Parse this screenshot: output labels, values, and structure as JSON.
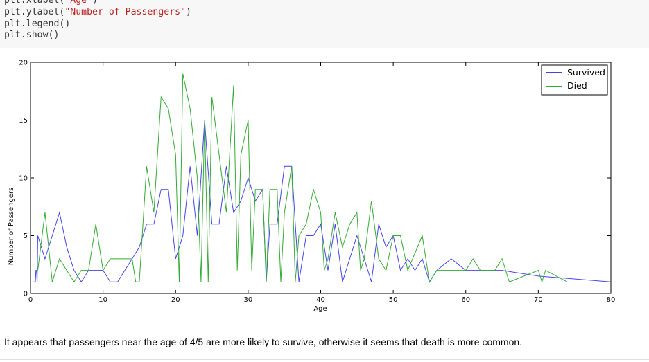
{
  "code_cell": {
    "lines": [
      [
        {
          "t": "plt.xlabel("
        },
        {
          "t": "\"Age\"",
          "s": true
        },
        {
          "t": ")"
        }
      ],
      [
        {
          "t": "plt.ylabel("
        },
        {
          "t": "\"Number of Passengers\"",
          "s": true
        },
        {
          "t": ")"
        }
      ],
      [
        {
          "t": "plt.legend()"
        }
      ],
      [
        {
          "t": "plt.show()"
        }
      ]
    ]
  },
  "chart_data": {
    "type": "line",
    "title": "",
    "xlabel": "Age",
    "ylabel": "Number of Passengers",
    "xlim": [
      0,
      80
    ],
    "ylim": [
      0,
      20
    ],
    "x_ticks": [
      0,
      10,
      20,
      30,
      40,
      50,
      60,
      70,
      80
    ],
    "y_ticks": [
      0,
      5,
      10,
      15,
      20
    ],
    "grid": false,
    "legend": "top-right",
    "series": [
      {
        "name": "Survived",
        "color": "#4444ee",
        "points": [
          [
            0.42,
            1
          ],
          [
            0.67,
            1
          ],
          [
            0.75,
            2
          ],
          [
            0.83,
            2
          ],
          [
            0.92,
            1
          ],
          [
            1,
            5
          ],
          [
            2,
            3
          ],
          [
            3,
            5
          ],
          [
            4,
            7
          ],
          [
            5,
            4
          ],
          [
            6,
            2
          ],
          [
            7,
            1
          ],
          [
            8,
            2
          ],
          [
            9,
            2
          ],
          [
            10,
            2
          ],
          [
            11,
            1
          ],
          [
            12,
            1
          ],
          [
            13,
            2
          ],
          [
            14,
            3
          ],
          [
            15,
            4
          ],
          [
            16,
            6
          ],
          [
            17,
            6
          ],
          [
            18,
            9
          ],
          [
            19,
            9
          ],
          [
            20,
            3
          ],
          [
            21,
            5
          ],
          [
            22,
            11
          ],
          [
            23,
            5
          ],
          [
            24,
            15
          ],
          [
            25,
            6
          ],
          [
            26,
            6
          ],
          [
            27,
            11
          ],
          [
            28,
            7
          ],
          [
            29,
            8
          ],
          [
            30,
            10
          ],
          [
            31,
            8
          ],
          [
            32,
            9
          ],
          [
            32.5,
            1
          ],
          [
            33,
            6
          ],
          [
            34,
            6
          ],
          [
            35,
            11
          ],
          [
            36,
            11
          ],
          [
            37,
            1
          ],
          [
            38,
            5
          ],
          [
            39,
            5
          ],
          [
            40,
            6
          ],
          [
            41,
            2
          ],
          [
            42,
            6
          ],
          [
            43,
            1
          ],
          [
            44,
            3
          ],
          [
            45,
            5
          ],
          [
            46,
            3
          ],
          [
            47,
            1
          ],
          [
            48,
            6
          ],
          [
            49,
            4
          ],
          [
            50,
            5
          ],
          [
            51,
            2
          ],
          [
            52,
            3
          ],
          [
            53,
            2
          ],
          [
            54,
            3
          ],
          [
            55,
            1
          ],
          [
            56,
            2
          ],
          [
            58,
            3
          ],
          [
            60,
            2
          ],
          [
            62,
            2
          ],
          [
            63,
            2
          ],
          [
            65,
            2
          ],
          [
            70,
            1.5
          ],
          [
            80,
            1
          ]
        ]
      },
      {
        "name": "Died",
        "color": "#33aa33",
        "points": [
          [
            1,
            2
          ],
          [
            2,
            7
          ],
          [
            3,
            1
          ],
          [
            4,
            3
          ],
          [
            5,
            2
          ],
          [
            6,
            1
          ],
          [
            7,
            2
          ],
          [
            8,
            2
          ],
          [
            9,
            6
          ],
          [
            10,
            2
          ],
          [
            11,
            3
          ],
          [
            14,
            3
          ],
          [
            14.5,
            1
          ],
          [
            15,
            1
          ],
          [
            16,
            11
          ],
          [
            17,
            7
          ],
          [
            18,
            17
          ],
          [
            19,
            16
          ],
          [
            20,
            12
          ],
          [
            20.5,
            1
          ],
          [
            21,
            19
          ],
          [
            22,
            16
          ],
          [
            23,
            10
          ],
          [
            23.5,
            1
          ],
          [
            24,
            15
          ],
          [
            24.5,
            1
          ],
          [
            25,
            17
          ],
          [
            26,
            12
          ],
          [
            27,
            7
          ],
          [
            28,
            18
          ],
          [
            28.5,
            2
          ],
          [
            29,
            12
          ],
          [
            30,
            15
          ],
          [
            30.5,
            2
          ],
          [
            31,
            9
          ],
          [
            32,
            9
          ],
          [
            32.5,
            1
          ],
          [
            33,
            9
          ],
          [
            34,
            9
          ],
          [
            34.5,
            1
          ],
          [
            35,
            7
          ],
          [
            36,
            11
          ],
          [
            36.5,
            1
          ],
          [
            37,
            5
          ],
          [
            38,
            6
          ],
          [
            39,
            9
          ],
          [
            40,
            7
          ],
          [
            40.5,
            2
          ],
          [
            41,
            3
          ],
          [
            42,
            7
          ],
          [
            43,
            4
          ],
          [
            44,
            6
          ],
          [
            45,
            7
          ],
          [
            45.5,
            2
          ],
          [
            46,
            3
          ],
          [
            47,
            8
          ],
          [
            48,
            3
          ],
          [
            49,
            2
          ],
          [
            50,
            5
          ],
          [
            51,
            5
          ],
          [
            52,
            2
          ],
          [
            54,
            5
          ],
          [
            55,
            1
          ],
          [
            56,
            2
          ],
          [
            60,
            2
          ],
          [
            61,
            3
          ],
          [
            62,
            2
          ],
          [
            64,
            2
          ],
          [
            65,
            3
          ],
          [
            66,
            1
          ],
          [
            70,
            2
          ],
          [
            70.5,
            1
          ],
          [
            71,
            2
          ],
          [
            74,
            1
          ]
        ]
      }
    ]
  },
  "markdown": {
    "text": "It appears that passengers near the age of 4/5 are more likely to survive, otherwise it seems that death is more common."
  }
}
